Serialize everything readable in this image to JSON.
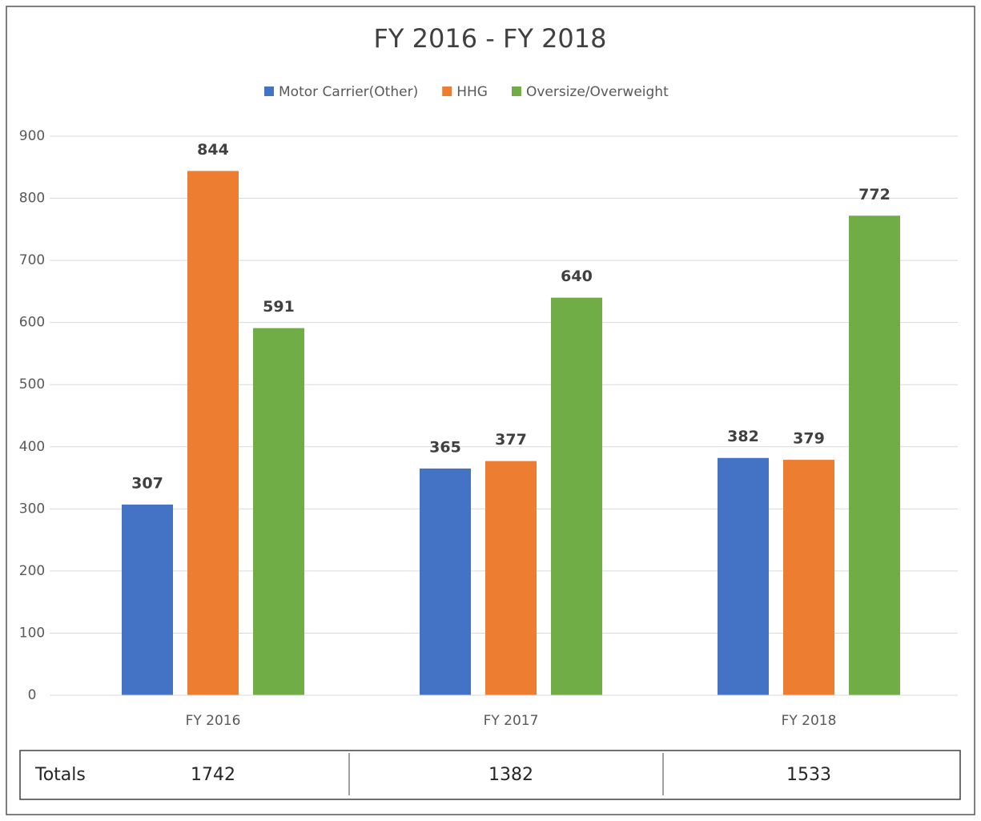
{
  "chart_data": {
    "type": "bar",
    "title": "FY 2016 - FY 2018",
    "categories": [
      "FY 2016",
      "FY 2017",
      "FY 2018"
    ],
    "series": [
      {
        "name": "Motor Carrier(Other)",
        "color": "#4472c4",
        "values": [
          307,
          365,
          382
        ]
      },
      {
        "name": "HHG",
        "color": "#ed7d31",
        "values": [
          844,
          377,
          379
        ]
      },
      {
        "name": "Oversize/Overweight",
        "color": "#70ad47",
        "values": [
          591,
          640,
          772
        ]
      }
    ],
    "ylim": [
      0,
      900
    ],
    "yticks": [
      0,
      100,
      200,
      300,
      400,
      500,
      600,
      700,
      800,
      900
    ],
    "grid": true,
    "legend": "top",
    "totals": {
      "label": "Totals",
      "values": [
        1742,
        1382,
        1533
      ]
    }
  }
}
